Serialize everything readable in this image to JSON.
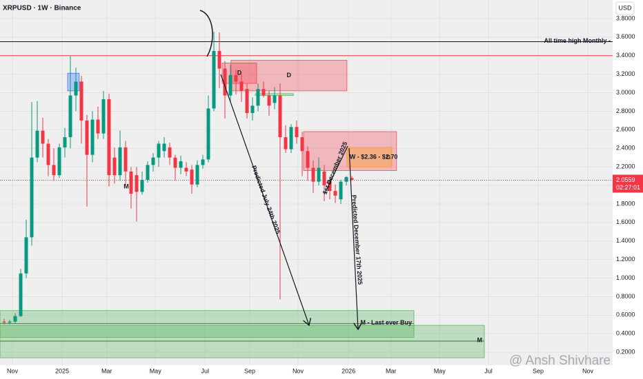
{
  "chart_data": {
    "type": "candlestick",
    "title": "XRPUSD · 1W · Binance",
    "currency": "USD",
    "up_color": "#089981",
    "down_color": "#f23645",
    "open": [
      0.53,
      0.52,
      0.53,
      0.59,
      1.05,
      1.44,
      2.3,
      2.59,
      2.45,
      2.22,
      2.11,
      2.41,
      2.52,
      2.97,
      3.12,
      2.7,
      2.33,
      2.71,
      2.56,
      2.93,
      2.3,
      2.11,
      2.41,
      2.15,
      2.11,
      1.93,
      2.06,
      2.22,
      2.3,
      2.37,
      2.41,
      2.3,
      2.19,
      2.19,
      2.17,
      2.01,
      2.22,
      2.28,
      2.83,
      3.45,
      3.26,
      2.97,
      3.19,
      3.12,
      3.04,
      2.78,
      2.86,
      3.04,
      2.97,
      2.89,
      2.97,
      2.52,
      2.39,
      2.63,
      2.52,
      2.37,
      2.19,
      2.04,
      2.15,
      2.06,
      1.94,
      1.85,
      2.04,
      2.08
    ],
    "high": [
      0.56,
      0.55,
      0.62,
      1.1,
      1.63,
      2.9,
      2.91,
      2.73,
      2.5,
      2.4,
      2.45,
      2.62,
      3.4,
      3.27,
      3.18,
      2.76,
      2.8,
      2.85,
      3.02,
      2.99,
      2.41,
      2.59,
      2.48,
      2.2,
      2.2,
      2.15,
      2.26,
      2.35,
      2.48,
      2.52,
      2.46,
      2.33,
      2.32,
      2.25,
      2.22,
      2.27,
      2.33,
      2.97,
      3.66,
      3.65,
      3.34,
      3.3,
      3.25,
      3.2,
      3.1,
      2.95,
      3.1,
      3.12,
      3.02,
      3.06,
      3.1,
      2.65,
      2.66,
      2.7,
      2.58,
      2.42,
      2.27,
      2.3,
      2.22,
      2.1,
      2.01,
      2.06,
      2.1,
      2.1
    ],
    "low": [
      0.5,
      0.5,
      0.51,
      0.58,
      1.0,
      1.35,
      2.25,
      2.3,
      2.1,
      2.05,
      2.08,
      2.3,
      2.4,
      2.8,
      2.45,
      1.77,
      2.25,
      2.5,
      2.5,
      1.99,
      2.02,
      2.05,
      2.0,
      1.75,
      1.61,
      1.9,
      2.03,
      2.15,
      2.2,
      2.3,
      2.22,
      2.05,
      2.12,
      2.1,
      1.91,
      1.98,
      2.18,
      2.25,
      2.8,
      3.05,
      2.72,
      2.9,
      2.98,
      2.9,
      2.72,
      2.7,
      2.8,
      2.95,
      2.75,
      2.82,
      0.77,
      2.35,
      2.35,
      2.45,
      2.1,
      2.05,
      1.92,
      2.0,
      1.83,
      1.85,
      1.81,
      1.8,
      2.0,
      2.05
    ],
    "close": [
      0.52,
      0.53,
      0.59,
      1.05,
      1.44,
      2.3,
      2.59,
      2.45,
      2.22,
      2.11,
      2.41,
      2.52,
      2.97,
      3.12,
      2.7,
      2.33,
      2.71,
      2.56,
      2.93,
      2.11,
      2.11,
      2.41,
      2.15,
      1.91,
      1.93,
      2.06,
      2.22,
      2.3,
      2.45,
      2.45,
      2.3,
      2.19,
      2.26,
      2.15,
      2.01,
      2.22,
      2.28,
      2.83,
      3.45,
      3.26,
      2.97,
      3.19,
      3.12,
      3.02,
      2.78,
      2.86,
      3.04,
      2.97,
      2.86,
      2.97,
      2.52,
      2.39,
      2.63,
      2.52,
      2.37,
      2.19,
      2.04,
      2.19,
      2.0,
      1.94,
      1.89,
      2.04,
      2.09,
      2.06
    ],
    "xlim": [
      -0.75,
      110.25
    ],
    "xticks": [
      {
        "value": 1.5,
        "label": "Nov"
      },
      {
        "value": 10.5,
        "label": "2025"
      },
      {
        "value": 18.6,
        "label": "Mar"
      },
      {
        "value": 27.4,
        "label": "May"
      },
      {
        "value": 36.4,
        "label": "Jul"
      },
      {
        "value": 44.5,
        "label": "Sep"
      },
      {
        "value": 53.25,
        "label": "Nov"
      },
      {
        "value": 62.4,
        "label": "2026"
      },
      {
        "value": 70.1,
        "label": "Mar"
      },
      {
        "value": 78.9,
        "label": "May"
      },
      {
        "value": 87.75,
        "label": "Jul"
      },
      {
        "value": 96.75,
        "label": "Sep"
      },
      {
        "value": 105.75,
        "label": "Nov"
      }
    ],
    "ylim": [
      0.06,
      4.0
    ],
    "yticks": [
      {
        "value": 0.2,
        "label": "0.2000"
      },
      {
        "value": 0.4,
        "label": "0.4000"
      },
      {
        "value": 0.6,
        "label": "0.6000"
      },
      {
        "value": 0.8,
        "label": "0.8000"
      },
      {
        "value": 1.0,
        "label": "1.0000"
      },
      {
        "value": 1.2,
        "label": "1.2000"
      },
      {
        "value": 1.4,
        "label": "1.4000"
      },
      {
        "value": 1.6,
        "label": "1.6000"
      },
      {
        "value": 1.8,
        "label": "1.8000"
      },
      {
        "value": 2.0,
        "label": "2.0000"
      },
      {
        "value": 2.2,
        "label": "2.2000"
      },
      {
        "value": 2.4,
        "label": "2.4000"
      },
      {
        "value": 2.6,
        "label": "2.6000"
      },
      {
        "value": 2.8,
        "label": "2.8000"
      },
      {
        "value": 3.0,
        "label": "3.0000"
      },
      {
        "value": 3.2,
        "label": "3.2000"
      },
      {
        "value": 3.4,
        "label": "3.4000"
      },
      {
        "value": 3.6,
        "label": "3.6000"
      },
      {
        "value": 3.8,
        "label": "3.8000"
      }
    ],
    "grid": true,
    "levels": [
      {
        "label": "All time high Monthly -",
        "value": 3.55,
        "color": "#131722"
      },
      {
        "value": 3.4,
        "color": "#f23645"
      },
      {
        "label": "M - Last ever Buy",
        "value": 0.51,
        "color": "#f23645",
        "x": [
          -0.75,
          74.25
        ]
      },
      {
        "label": "M",
        "value": 0.32,
        "color": "#2e7d32",
        "x": [
          -0.75,
          87
        ]
      }
    ],
    "zones": [
      {
        "label": "D",
        "x": [
          41.1,
          62.1
        ],
        "y": [
          3.02,
          3.35
        ],
        "color": "#f23645"
      },
      {
        "label": "D",
        "x": [
          39.5,
          45.75
        ],
        "y": [
          3.1,
          3.32
        ],
        "color": "#f23645"
      },
      {
        "x": [
          45.5,
          52.4
        ],
        "y": [
          2.97,
          2.99
        ],
        "color": "#4caf50"
      },
      {
        "label": "D",
        "x": [
          54.25,
          71.1
        ],
        "y": [
          2.16,
          2.58
        ],
        "color": "#f23645"
      },
      {
        "label": "W - $2.36 - $2.70",
        "x": [
          62.1,
          70.25
        ],
        "y": [
          2.2,
          2.41
        ],
        "color": "#ff9800"
      },
      {
        "x": [
          11.5,
          13.6
        ],
        "y": [
          3.02,
          3.21
        ],
        "color": "#2962ff"
      },
      {
        "x": [
          -0.75,
          74.25
        ],
        "y": [
          0.36,
          0.65
        ],
        "color": "#4caf50"
      },
      {
        "x": [
          -0.75,
          87
        ],
        "y": [
          0.14,
          0.49
        ],
        "color": "#4caf50"
      }
    ],
    "annotations": [
      "M",
      "Predicted July 24th 2025",
      "Predicted December 17th 2025",
      "1st December 2025"
    ],
    "last_price": {
      "value": 2.0559,
      "countdown": "02:27:01",
      "color": "#f23645"
    },
    "watermark": "@ Ansh Shivhare"
  }
}
